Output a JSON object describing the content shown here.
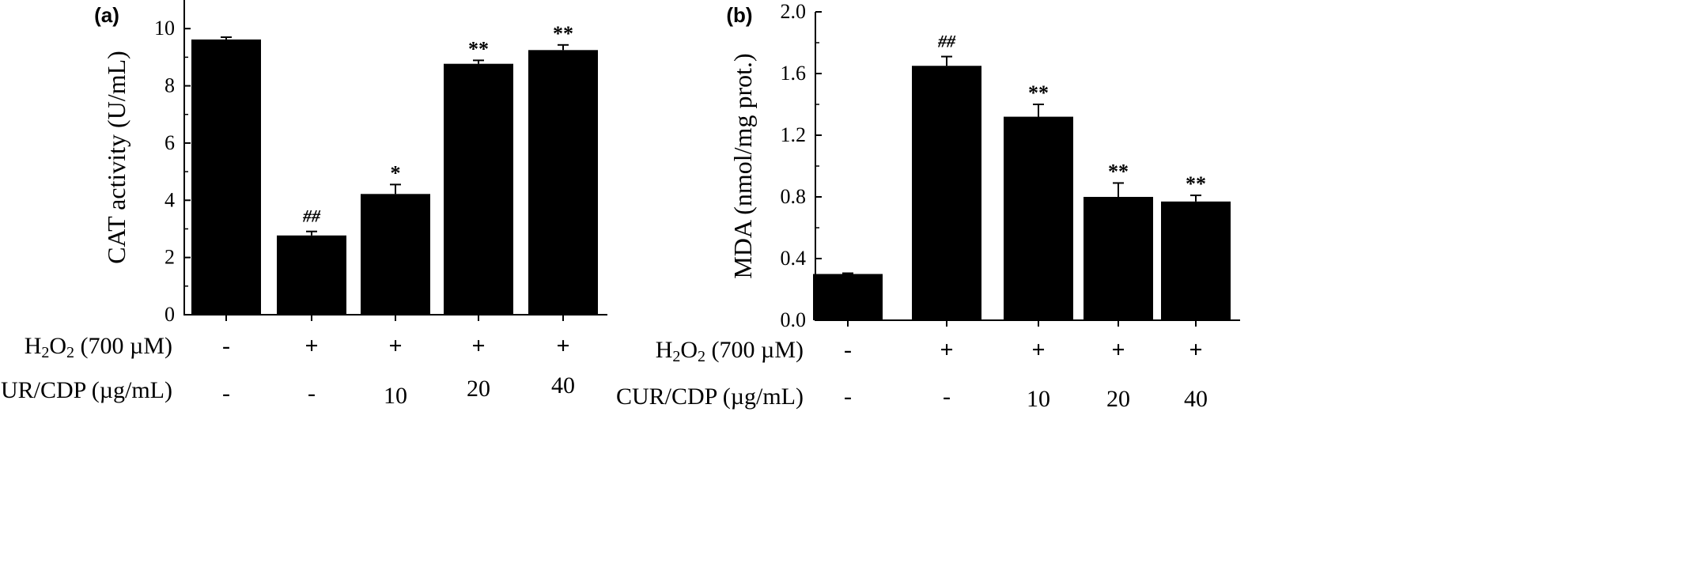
{
  "colors": {
    "bar": "#000000",
    "axis": "#000000",
    "background": "#ffffff"
  },
  "row_labels": {
    "h2o2_prefix": "H",
    "h2o2_sub1": "2",
    "h2o2_mid": "O",
    "h2o2_sub2": "2",
    "h2o2_suffix": " (700 µM)",
    "cur": "CUR/CDP (µg/mL)"
  },
  "chart_data": [
    {
      "type": "bar",
      "panel_label": "(a)",
      "ylabel": "CAT activity (U/mL)",
      "ylim": [
        0,
        11
      ],
      "yticks": [
        0,
        2,
        4,
        6,
        8,
        10
      ],
      "ytick_labels": [
        "0",
        "2",
        "4",
        "6",
        "8",
        "10"
      ],
      "grid": false,
      "h2o2": [
        "-",
        "+",
        "+",
        "+",
        "+"
      ],
      "cur_cdp": [
        "-",
        "-",
        "10",
        "20",
        "40"
      ],
      "values": [
        9.62,
        2.77,
        4.22,
        8.77,
        9.25
      ],
      "errors": [
        0.08,
        0.14,
        0.33,
        0.12,
        0.18
      ],
      "annotations": [
        "",
        "##",
        "*",
        "**",
        "**"
      ]
    },
    {
      "type": "bar",
      "panel_label": "(b)",
      "ylabel": "MDA (nmol/mg prot.)",
      "ylim": [
        0,
        2.0
      ],
      "yticks": [
        0,
        0.4,
        0.8,
        1.2,
        1.6,
        2.0
      ],
      "ytick_labels": [
        "0.0",
        "0.4",
        "0.8",
        "1.2",
        "1.6",
        "2.0"
      ],
      "grid": false,
      "h2o2": [
        "-",
        "+",
        "+",
        "+",
        "+"
      ],
      "cur_cdp": [
        "-",
        "-",
        "10",
        "20",
        "40"
      ],
      "values": [
        0.3,
        1.65,
        1.32,
        0.8,
        0.77
      ],
      "errors": [
        0.005,
        0.06,
        0.08,
        0.09,
        0.04
      ],
      "annotations": [
        "",
        "##",
        "**",
        "**",
        "**"
      ]
    }
  ]
}
